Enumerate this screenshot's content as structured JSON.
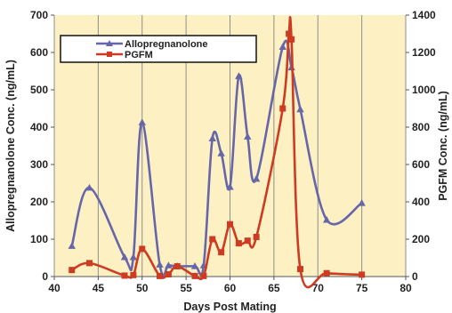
{
  "chart_data": {
    "type": "line",
    "xlabel": "Days Post Mating",
    "ylabel_left": "Allopregnanolone Conc. (ng/mL)",
    "ylabel_right": "PGFM Conc. (ng/mL)",
    "xlim": [
      40,
      80
    ],
    "xticks": [
      40,
      45,
      50,
      55,
      60,
      65,
      70,
      75,
      80
    ],
    "ylim_left": [
      0,
      700
    ],
    "yticks_left": [
      0,
      100,
      200,
      300,
      400,
      500,
      600,
      700
    ],
    "ylim_right": [
      0,
      1400
    ],
    "yticks_right": [
      0,
      200,
      400,
      600,
      800,
      1000,
      1200,
      1400
    ],
    "grid": "vertical",
    "legend_position": "top-left",
    "colors": {
      "plot_background": "#fdf0c2",
      "gridline": "#8e8e8e",
      "allopregnanolone": "#6666aa",
      "pgfm": "#cc3b22"
    },
    "series": [
      {
        "name": "Allopregnanolone",
        "axis": "left",
        "marker": "triangle",
        "x": [
          42,
          44,
          48,
          49,
          50,
          52,
          53,
          54,
          56,
          57,
          58,
          59,
          60,
          61,
          62,
          63,
          66,
          67,
          68,
          71,
          75
        ],
        "y": [
          82,
          238,
          52,
          52,
          413,
          32,
          30,
          28,
          28,
          30,
          370,
          330,
          240,
          537,
          375,
          262,
          615,
          560,
          448,
          152,
          197
        ]
      },
      {
        "name": "PGFM",
        "axis": "right",
        "marker": "square",
        "x": [
          42,
          44,
          48,
          49,
          50,
          52,
          53,
          54,
          56,
          57,
          58,
          59,
          60,
          61,
          62,
          63,
          66,
          66.7,
          67,
          68,
          71,
          75
        ],
        "y": [
          35,
          72,
          5,
          8,
          148,
          3,
          12,
          55,
          3,
          3,
          200,
          130,
          280,
          178,
          192,
          212,
          900,
          1300,
          1270,
          40,
          18,
          10
        ]
      }
    ]
  }
}
